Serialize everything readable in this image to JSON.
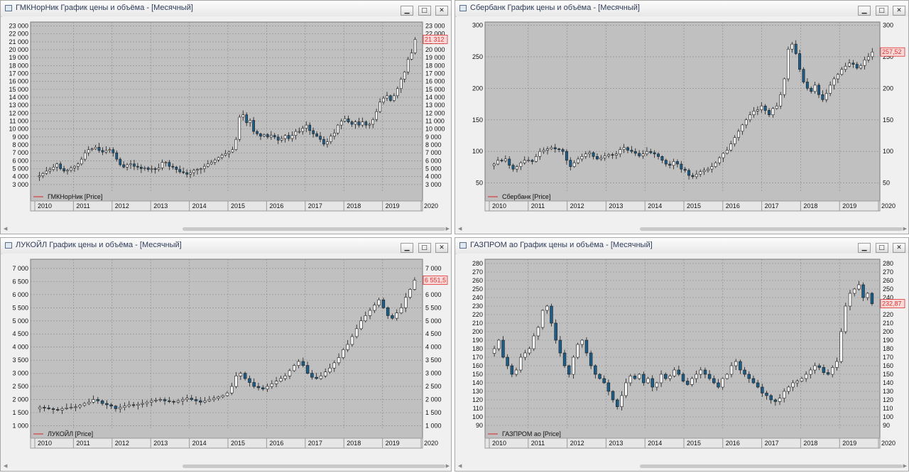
{
  "panels": [
    {
      "title": "ГМКНорНик График цены и объёма - [Месячный]",
      "legend": "ГМКНорНик [Price]",
      "last_price_label": "21 312",
      "controls": {
        "minimize": "▁",
        "restore": "□",
        "close": "✕"
      }
    },
    {
      "title": "Сбербанк График цены и объёма - [Месячный]",
      "legend": "Сбербанк [Price]",
      "last_price_label": "257,52",
      "controls": {
        "minimize": "▁",
        "restore": "□",
        "close": "✕"
      }
    },
    {
      "title": "ЛУКОЙЛ График цены и объёма - [Месячный]",
      "legend": "ЛУКОЙЛ [Price]",
      "last_price_label": "6 551,5",
      "controls": {
        "minimize": "▁",
        "restore": "□",
        "close": "✕"
      }
    },
    {
      "title": "ГАЗПРОМ ао График цены и объёма - [Месячный]",
      "legend": "ГАЗПРОМ ао [Price]",
      "last_price_label": "232,87",
      "controls": {
        "minimize": "▁",
        "restore": "□",
        "close": "✕"
      }
    }
  ],
  "colors": {
    "plot_bg": "#c0c0c0",
    "up_candle": "#ffffff",
    "down_candle": "#1c5e8a",
    "last_price": "#e03030",
    "grid": "#8a8a8a",
    "legend_line": "#d04040"
  },
  "chart_data": [
    {
      "type": "candlestick",
      "name": "ГМКНорНик",
      "interval": "monthly",
      "x_ticks": [
        "2010",
        "2011",
        "2012",
        "2013",
        "2014",
        "2015",
        "2016",
        "2017",
        "2018",
        "2019",
        "2020"
      ],
      "y_ticks": [
        "3 000",
        "4 000",
        "5 000",
        "6 000",
        "7 000",
        "8 000",
        "9 000",
        "10 000",
        "11 000",
        "12 000",
        "13 000",
        "14 000",
        "15 000",
        "16 000",
        "17 000",
        "18 000",
        "19 000",
        "20 000",
        "21 000",
        "22 000",
        "23 000"
      ],
      "ylim": [
        2000,
        23500
      ],
      "last_price": 21312,
      "series_close": [
        4100,
        4400,
        4700,
        4900,
        5200,
        5600,
        5000,
        4700,
        4800,
        5100,
        5300,
        5600,
        6200,
        7000,
        7400,
        7500,
        7700,
        7300,
        7100,
        7300,
        7400,
        7000,
        6200,
        5500,
        5200,
        5500,
        5600,
        5300,
        5200,
        5000,
        5100,
        4900,
        5000,
        4900,
        5100,
        5800,
        5800,
        5300,
        5200,
        4900,
        4600,
        4500,
        4300,
        4500,
        4800,
        4900,
        5000,
        5300,
        5600,
        5800,
        6100,
        6400,
        6700,
        6900,
        7100,
        7400,
        8700,
        11500,
        11800,
        10800,
        11100,
        9700,
        9400,
        9100,
        9300,
        9000,
        9200,
        9000,
        8600,
        8800,
        9200,
        8800,
        9200,
        9700,
        9700,
        10100,
        10500,
        9800,
        9400,
        9100,
        8700,
        8100,
        8400,
        9100,
        9500,
        10500,
        11000,
        11300,
        10900,
        10600,
        10900,
        10500,
        10900,
        10500,
        10600,
        11200,
        12200,
        13400,
        13900,
        14200,
        13600,
        14200,
        15100,
        16300,
        17200,
        18800,
        19600,
        21312
      ]
    },
    {
      "type": "candlestick",
      "name": "Сбербанк",
      "interval": "monthly",
      "x_ticks": [
        "2010",
        "2011",
        "2012",
        "2013",
        "2014",
        "2015",
        "2016",
        "2017",
        "2018",
        "2019",
        "2020"
      ],
      "y_ticks": [
        "50",
        "100",
        "150",
        "200",
        "250",
        "300"
      ],
      "ylim": [
        35,
        305
      ],
      "last_price": 257.52,
      "series_close": [
        80,
        86,
        85,
        88,
        78,
        72,
        76,
        82,
        86,
        86,
        84,
        92,
        100,
        102,
        104,
        106,
        104,
        103,
        100,
        86,
        76,
        82,
        88,
        92,
        96,
        98,
        92,
        88,
        90,
        93,
        95,
        94,
        96,
        103,
        106,
        102,
        100,
        97,
        93,
        96,
        100,
        98,
        96,
        92,
        86,
        80,
        78,
        84,
        80,
        72,
        70,
        62,
        60,
        64,
        68,
        70,
        72,
        76,
        82,
        90,
        97,
        102,
        112,
        122,
        132,
        142,
        150,
        158,
        164,
        166,
        172,
        165,
        158,
        168,
        172,
        190,
        215,
        262,
        270,
        255,
        230,
        210,
        200,
        195,
        205,
        190,
        182,
        192,
        205,
        215,
        222,
        230,
        235,
        240,
        238,
        232,
        236,
        245,
        250,
        257.52
      ]
    },
    {
      "type": "candlestick",
      "name": "ЛУКОЙЛ",
      "interval": "monthly",
      "x_ticks": [
        "2010",
        "2011",
        "2012",
        "2013",
        "2014",
        "2015",
        "2016",
        "2017",
        "2018",
        "2019",
        "2020"
      ],
      "y_ticks": [
        "1 000",
        "1 500",
        "2 000",
        "2 500",
        "3 000",
        "3 500",
        "4 000",
        "4 500",
        "5 000",
        "5 500",
        "6 000",
        "6 500",
        "7 000"
      ],
      "ylim": [
        850,
        7350
      ],
      "last_price": 6551.5,
      "series_close": [
        1700,
        1680,
        1650,
        1620,
        1600,
        1650,
        1680,
        1700,
        1720,
        1780,
        1850,
        1900,
        2000,
        1950,
        1850,
        1800,
        1750,
        1650,
        1700,
        1750,
        1800,
        1780,
        1820,
        1850,
        1900,
        1950,
        1980,
        2000,
        1950,
        1930,
        1900,
        1950,
        2000,
        2050,
        2000,
        1950,
        1900,
        1950,
        2000,
        2050,
        2100,
        2150,
        2250,
        2500,
        2900,
        3000,
        2800,
        2650,
        2500,
        2450,
        2400,
        2500,
        2600,
        2700,
        2800,
        2900,
        3100,
        3300,
        3450,
        3300,
        3000,
        2850,
        2800,
        2900,
        3050,
        3200,
        3400,
        3600,
        3900,
        4100,
        4400,
        4700,
        5000,
        5200,
        5400,
        5600,
        5800,
        5500,
        5200,
        5100,
        5300,
        5500,
        5900,
        6200,
        6551.5
      ]
    },
    {
      "type": "candlestick",
      "name": "ГАЗПРОМ ао",
      "interval": "monthly",
      "x_ticks": [
        "2010",
        "2011",
        "2012",
        "2013",
        "2014",
        "2015",
        "2016",
        "2017",
        "2018",
        "2019",
        "2020"
      ],
      "y_ticks": [
        "90",
        "100",
        "110",
        "120",
        "130",
        "140",
        "150",
        "160",
        "170",
        "180",
        "190",
        "200",
        "210",
        "220",
        "230",
        "240",
        "250",
        "260",
        "270",
        "280"
      ],
      "ylim": [
        85,
        285
      ],
      "last_price": 232.87,
      "series_close": [
        180,
        190,
        170,
        160,
        150,
        155,
        170,
        175,
        180,
        195,
        205,
        225,
        230,
        210,
        190,
        175,
        160,
        150,
        170,
        185,
        190,
        175,
        160,
        150,
        145,
        140,
        130,
        120,
        112,
        125,
        140,
        148,
        145,
        150,
        140,
        145,
        135,
        140,
        150,
        145,
        148,
        155,
        150,
        142,
        138,
        145,
        150,
        155,
        150,
        145,
        140,
        135,
        145,
        150,
        160,
        165,
        155,
        150,
        145,
        140,
        135,
        128,
        125,
        120,
        118,
        122,
        130,
        135,
        140,
        142,
        145,
        150,
        155,
        160,
        158,
        152,
        150,
        158,
        165,
        200,
        230,
        245,
        250,
        255,
        240,
        245,
        232.87
      ]
    }
  ]
}
